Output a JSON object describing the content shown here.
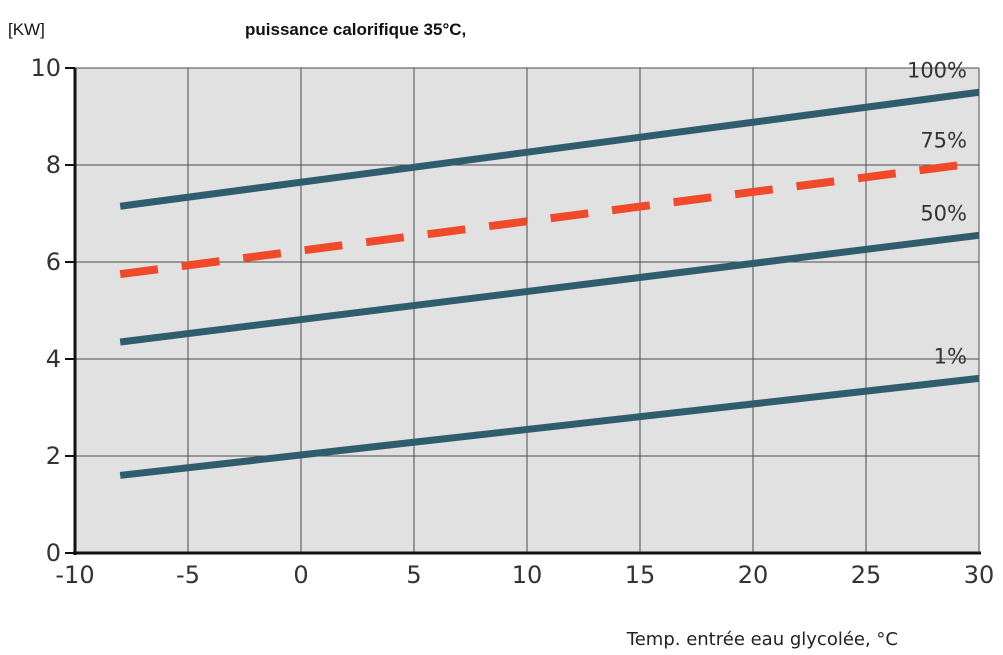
{
  "chart_data": {
    "type": "line",
    "title": "puissance calorifique 35°C,",
    "ylabel": "[KW]",
    "xlabel": "Temp. entrée eau glycolée, °C",
    "xlim": [
      -10,
      30
    ],
    "ylim": [
      0,
      10
    ],
    "x_ticks": [
      "-10",
      "-5",
      "0",
      "5",
      "10",
      "15",
      "20",
      "25",
      "30"
    ],
    "y_ticks": [
      "0",
      "2",
      "4",
      "6",
      "8",
      "10"
    ],
    "grid": true,
    "plot_background": "#e1e1e1",
    "series": [
      {
        "name": "100%",
        "color": "#2f5d6e",
        "dashed": false,
        "x": [
          -8,
          30
        ],
        "y": [
          7.15,
          9.5
        ]
      },
      {
        "name": "75%",
        "color": "#f04a2a",
        "dashed": true,
        "x": [
          -8,
          30
        ],
        "y": [
          5.75,
          8.05
        ]
      },
      {
        "name": "50%",
        "color": "#2f5d6e",
        "dashed": false,
        "x": [
          -8,
          30
        ],
        "y": [
          4.35,
          6.55
        ]
      },
      {
        "name": "1%",
        "color": "#2f5d6e",
        "dashed": false,
        "x": [
          -8,
          30
        ],
        "y": [
          1.6,
          3.6
        ]
      }
    ]
  }
}
